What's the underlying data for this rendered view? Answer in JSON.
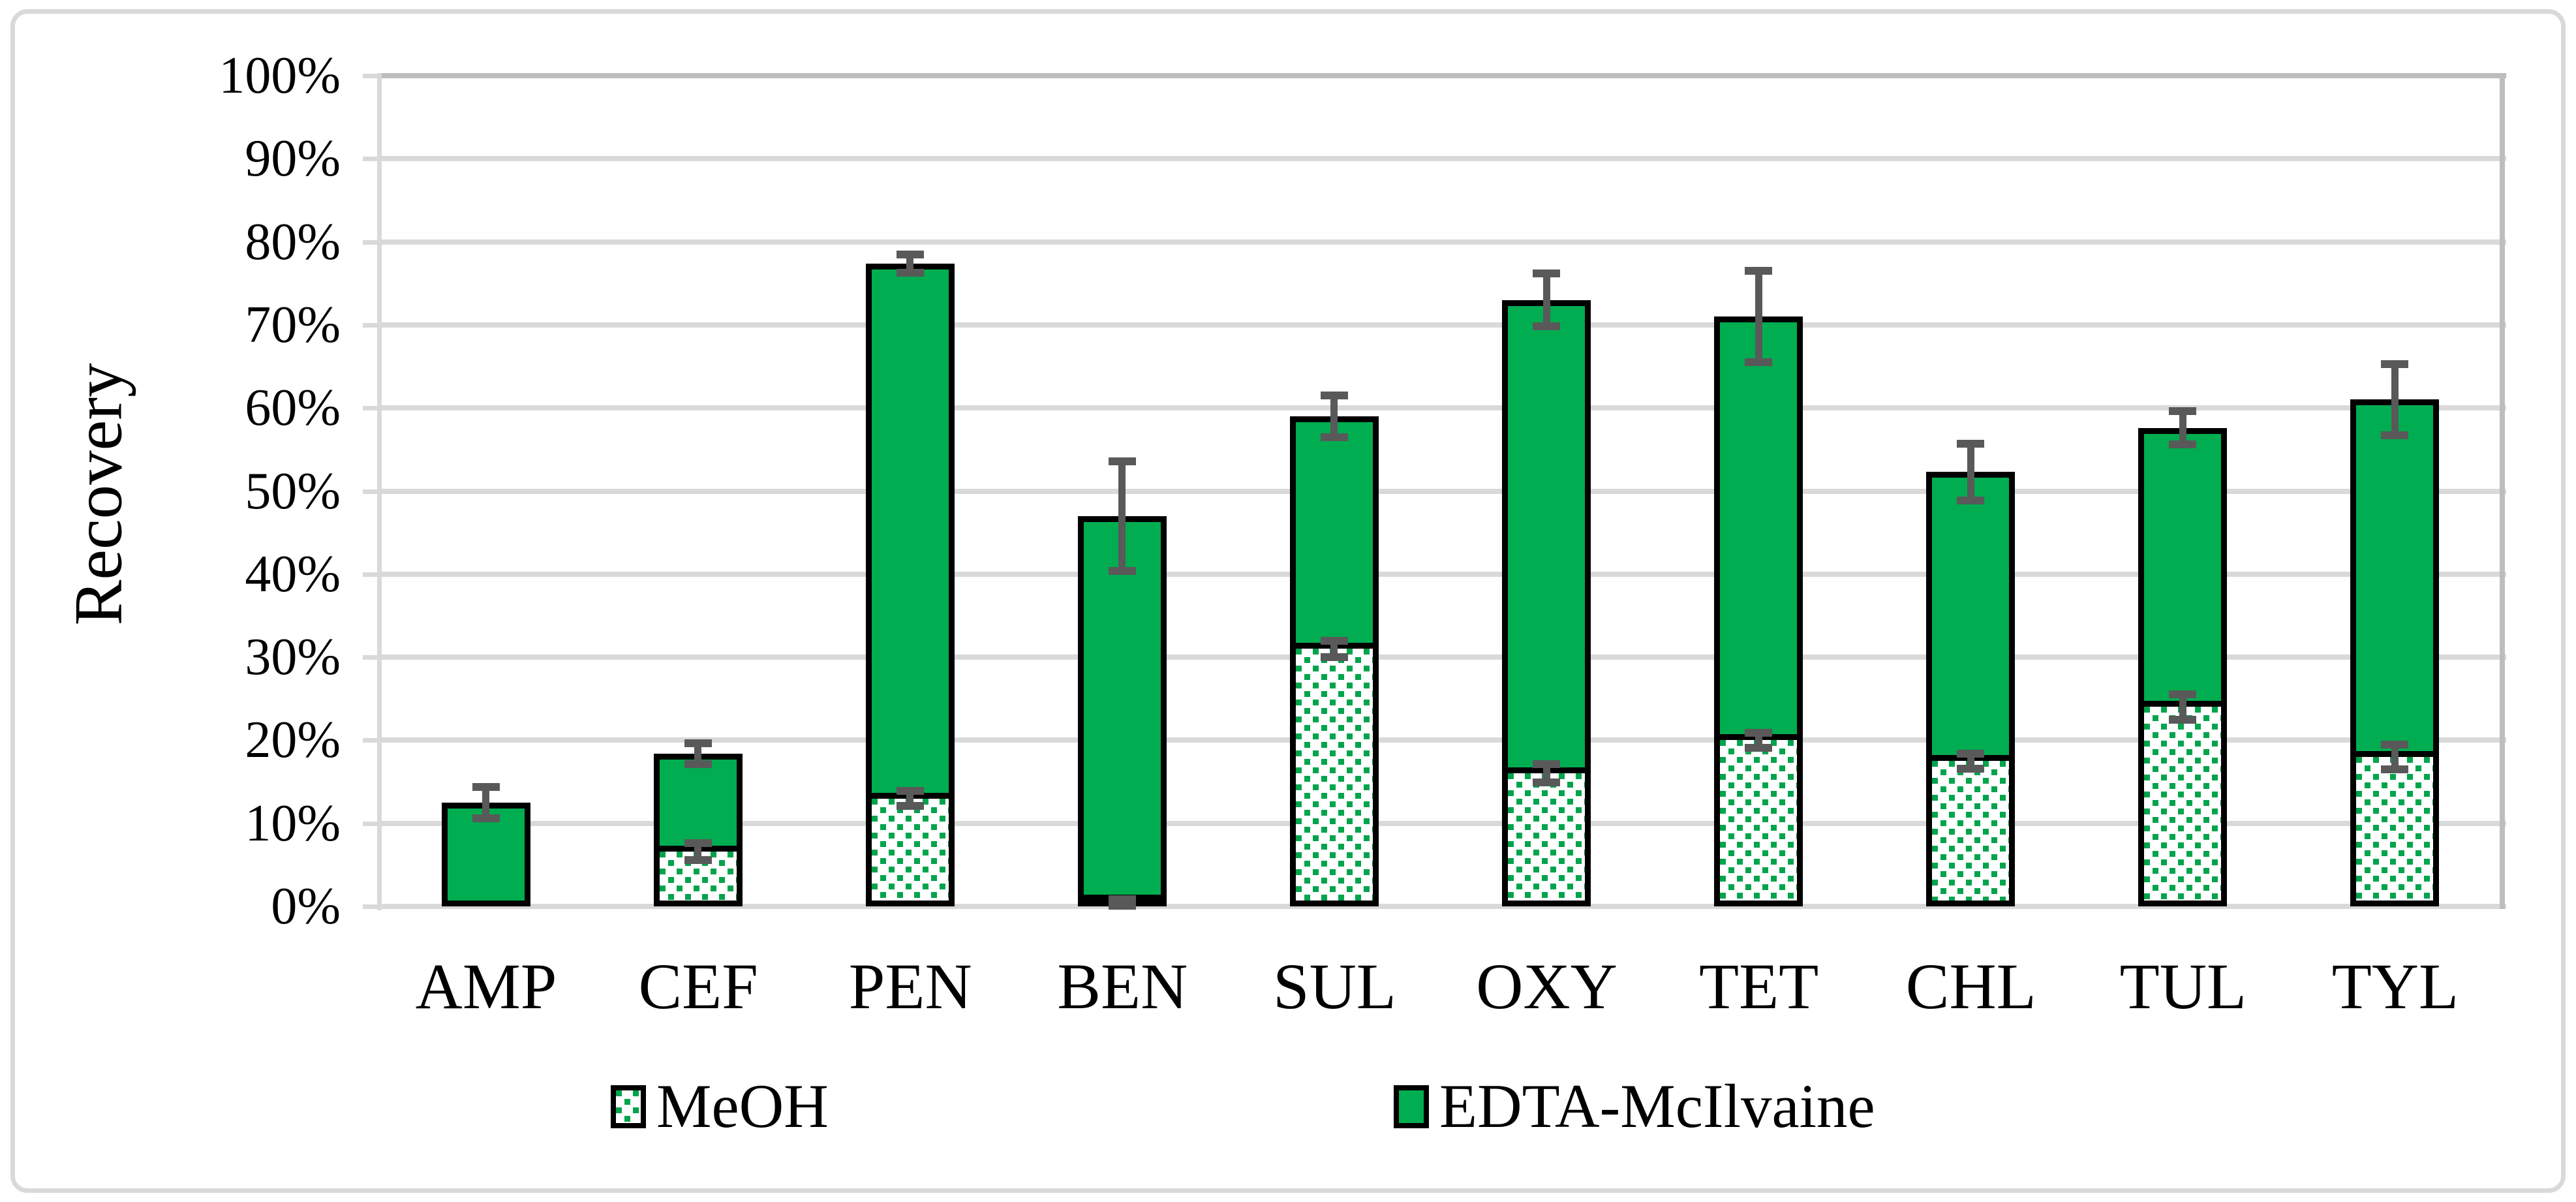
{
  "figure": {
    "type": "stacked-bar-chart-figure",
    "background": "#FFFFFF",
    "frame_border_color": "#D9D9D9"
  },
  "chart_data": {
    "type": "bar",
    "stacked": true,
    "title": "",
    "xlabel": "",
    "ylabel": "Recovery",
    "ylim": [
      0,
      100
    ],
    "grid": true,
    "legend_position": "bottom",
    "categories": [
      "AMP",
      "CEF",
      "PEN",
      "BEN",
      "SUL",
      "OXY",
      "TET",
      "CHL",
      "TUL",
      "TYL"
    ],
    "yticks": [
      "0%",
      "10%",
      "20%",
      "30%",
      "40%",
      "50%",
      "60%",
      "70%",
      "80%",
      "90%",
      "100%"
    ],
    "series": [
      {
        "name": "MeOH",
        "style": "green-dots-on-white",
        "values": [
          0,
          6.6,
          13,
          0.5,
          31,
          16,
          20,
          17.5,
          24,
          18
        ],
        "error_bars": [
          null,
          1.05,
          0.9,
          0.4,
          1.0,
          1.1,
          0.9,
          0.9,
          1.5,
          1.5
        ]
      },
      {
        "name": "EDTA-McIlvaine",
        "style": "solid-green",
        "values": [
          12.5,
          11.8,
          64.4,
          46.5,
          28.0,
          57.0,
          51.0,
          34.8,
          33.6,
          43.0
        ],
        "error_bars": null
      }
    ],
    "stack_totals": [
      12.5,
      18.4,
      77.4,
      47.0,
      59.0,
      73.0,
      71.0,
      52.3,
      57.6,
      61.0
    ],
    "stack_total_error_bars": [
      1.9,
      1.25,
      1.1,
      6.6,
      2.5,
      3.2,
      5.5,
      3.4,
      2.0,
      4.3
    ],
    "colors": {
      "bar_fill_green": "#00AD50",
      "dot_green": "#00A44C",
      "bar_outline": "#000000",
      "error_bar": "#595959",
      "gridline": "#D9D9D9",
      "plot_top_right_border": "#BDBDBD",
      "text": "#000000"
    }
  },
  "legend": {
    "items": [
      {
        "label": "MeOH",
        "swatch": "green-dots-on-white"
      },
      {
        "label": "EDTA-McIlvaine",
        "swatch": "solid-green"
      }
    ]
  }
}
